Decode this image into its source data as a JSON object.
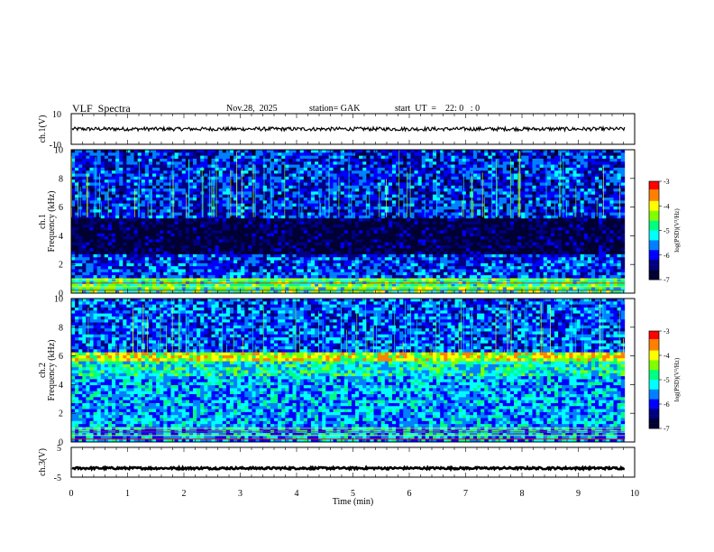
{
  "header": {
    "title": "VLF  Spectra",
    "date": "Nov.28,  2025",
    "station": "station= GAK",
    "start": "start  UT  =    22: 0   : 0"
  },
  "colors": {
    "scale": [
      "#000033",
      "#000080",
      "#0000ff",
      "#0080ff",
      "#00ffff",
      "#00ff80",
      "#80ff00",
      "#ffff00",
      "#ff8000",
      "#ff0000",
      "#ffffff"
    ]
  },
  "chart_data": [
    {
      "type": "line",
      "ylabel": "ch.1(V)",
      "ylim": [
        -10,
        10
      ],
      "ytick_labels": [
        "10",
        "-10"
      ],
      "mean_value": 0.0
    },
    {
      "type": "heatmap",
      "ylabel_line1": "ch.1",
      "ylabel_line2": "Frequency  (kHz)",
      "ylim": [
        0,
        10
      ],
      "ytick_labels": [
        "10",
        "8",
        "6",
        "4",
        "2",
        "0"
      ],
      "colorbar": {
        "label": "log(PSD)(V²/Hz)",
        "tick_labels": [
          "-3",
          "-4",
          "-5",
          "-6",
          "-7"
        ]
      }
    },
    {
      "type": "heatmap",
      "ylabel_line1": "ch.2",
      "ylabel_line2": "Frequency  (kHz)",
      "ylim": [
        0,
        10
      ],
      "ytick_labels": [
        "10",
        "8",
        "6",
        "4",
        "2",
        "0"
      ],
      "colorbar": {
        "label": "log(PSD)(V²/Hz)",
        "tick_labels": [
          "-3",
          "-4",
          "-5",
          "-6",
          "-7"
        ]
      }
    },
    {
      "type": "line",
      "ylabel": "ch.3(V)",
      "ylim": [
        -5,
        5
      ],
      "ytick_labels": [
        "5",
        "-5"
      ],
      "mean_value": -2.0
    }
  ],
  "xaxis": {
    "label": "Time  (min)",
    "xlim": [
      0,
      10
    ],
    "tick_labels": [
      "0",
      "1",
      "2",
      "3",
      "4",
      "5",
      "6",
      "7",
      "8",
      "9",
      "10"
    ]
  }
}
